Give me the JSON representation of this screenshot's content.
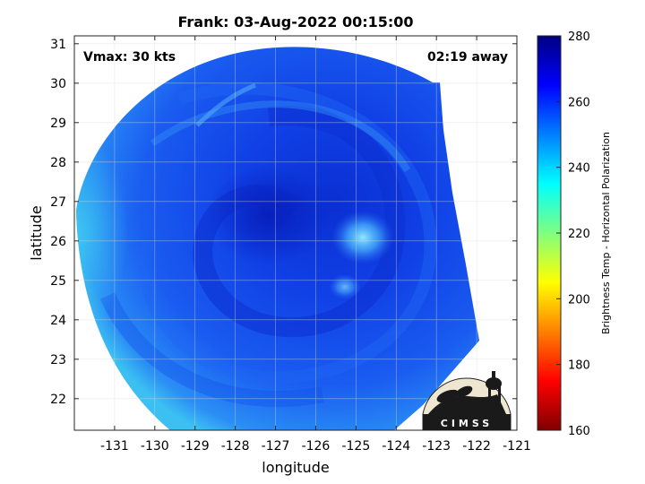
{
  "title": "Frank: 03-Aug-2022 00:15:00",
  "annotations": {
    "vmax": "Vmax: 30 kts",
    "away": "02:19 away"
  },
  "axes": {
    "xlabel": "longitude",
    "ylabel": "latitude",
    "xlim": [
      -132,
      -121
    ],
    "ylim": [
      21.2,
      31.2
    ],
    "xticks": [
      "-131",
      "-130",
      "-129",
      "-128",
      "-127",
      "-126",
      "-125",
      "-124",
      "-123",
      "-122",
      "-121"
    ],
    "yticks": [
      "22",
      "23",
      "24",
      "25",
      "26",
      "27",
      "28",
      "29",
      "30",
      "31"
    ],
    "grid": true
  },
  "colorbar": {
    "label": "Brightness Temp - Horizontal Polarization",
    "range": [
      160,
      280
    ],
    "ticks": [
      "280",
      "260",
      "240",
      "220",
      "200",
      "180",
      "160"
    ],
    "colormap": "jet"
  },
  "logo": {
    "text": "CIMSS"
  },
  "scene": {
    "center_lon": -126.6,
    "center_lat": 26.7,
    "dominant_temp_range_K": [
      245,
      270
    ],
    "warm_spot_lon": -124.5,
    "warm_spot_lat": 26.1
  }
}
